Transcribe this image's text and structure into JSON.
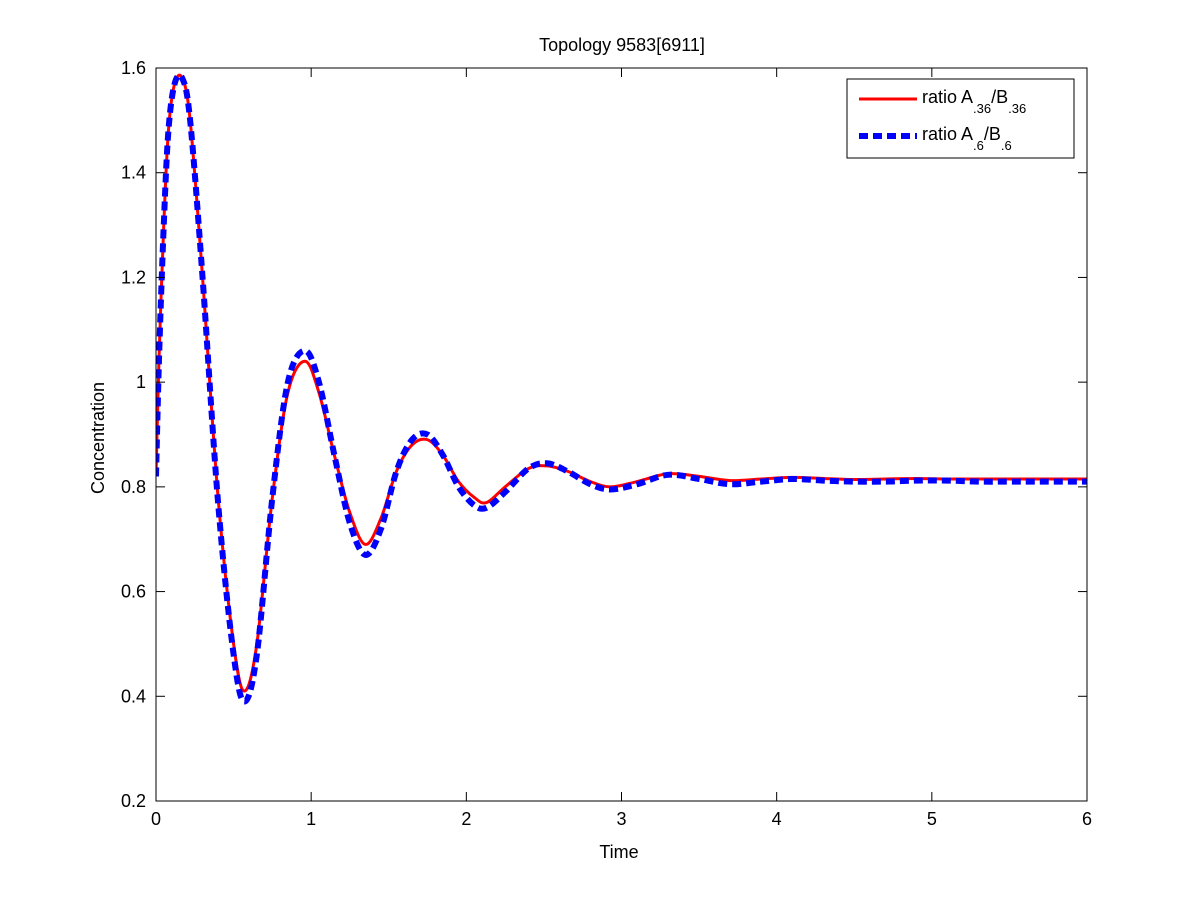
{
  "chart_data": {
    "type": "line",
    "title": "Topology 9583[6911]",
    "xlabel": "Time",
    "ylabel": "Concentration",
    "xlim": [
      0,
      6
    ],
    "ylim": [
      0.2,
      1.6
    ],
    "xticks": [
      0,
      1,
      2,
      3,
      4,
      5,
      6
    ],
    "xtick_labels": [
      "0",
      "1",
      "2",
      "3",
      "4",
      "5",
      "6"
    ],
    "yticks": [
      0.2,
      0.4,
      0.6,
      0.8,
      1.0,
      1.2,
      1.4,
      1.6
    ],
    "ytick_labels": [
      "0.2",
      "0.4",
      "0.6",
      "0.8",
      "1",
      "1.2",
      "1.4",
      "1.6"
    ],
    "grid": false,
    "legend_position": "top-right",
    "series": [
      {
        "name": "ratio A.36/B.36",
        "legend": {
          "text": "ratio A",
          "sub1": ".36",
          "mid": "/B",
          "sub2": ".36"
        },
        "color": "#ff0000",
        "style": "solid",
        "x": [
          0,
          0.02,
          0.05,
          0.08,
          0.12,
          0.17,
          0.22,
          0.3,
          0.4,
          0.5,
          0.57,
          0.65,
          0.75,
          0.85,
          0.96,
          1.05,
          1.15,
          1.25,
          1.35,
          1.45,
          1.55,
          1.65,
          1.75,
          1.85,
          1.95,
          2.05,
          2.13,
          2.25,
          2.4,
          2.52,
          2.65,
          2.8,
          2.93,
          3.1,
          3.3,
          3.5,
          3.7,
          3.9,
          4.1,
          4.3,
          4.5,
          4.7,
          4.9,
          5.1,
          5.3,
          5.5,
          5.7,
          6.0
        ],
        "y": [
          0.82,
          1.05,
          1.3,
          1.48,
          1.57,
          1.58,
          1.5,
          1.2,
          0.78,
          0.5,
          0.41,
          0.5,
          0.78,
          0.98,
          1.04,
          0.98,
          0.86,
          0.75,
          0.69,
          0.74,
          0.83,
          0.88,
          0.89,
          0.86,
          0.81,
          0.78,
          0.77,
          0.8,
          0.835,
          0.84,
          0.83,
          0.81,
          0.8,
          0.81,
          0.825,
          0.82,
          0.812,
          0.815,
          0.818,
          0.816,
          0.814,
          0.815,
          0.816,
          0.815,
          0.815,
          0.815,
          0.815,
          0.815
        ]
      },
      {
        "name": "ratio A.6/B.6",
        "legend": {
          "text": "ratio A",
          "sub1": ".6",
          "mid": "/B",
          "sub2": ".6"
        },
        "color": "#0000ff",
        "style": "dashed",
        "x": [
          0,
          0.02,
          0.05,
          0.08,
          0.12,
          0.17,
          0.22,
          0.3,
          0.4,
          0.5,
          0.57,
          0.65,
          0.75,
          0.85,
          0.96,
          1.05,
          1.15,
          1.25,
          1.35,
          1.45,
          1.55,
          1.65,
          1.75,
          1.85,
          1.95,
          2.05,
          2.13,
          2.25,
          2.4,
          2.52,
          2.65,
          2.8,
          2.93,
          3.1,
          3.3,
          3.5,
          3.7,
          3.9,
          4.1,
          4.3,
          4.5,
          4.7,
          4.9,
          5.1,
          5.3,
          5.5,
          5.7,
          6.0
        ],
        "y": [
          0.82,
          1.05,
          1.3,
          1.48,
          1.57,
          1.58,
          1.5,
          1.2,
          0.77,
          0.48,
          0.39,
          0.48,
          0.78,
          1.0,
          1.06,
          1.0,
          0.86,
          0.73,
          0.67,
          0.72,
          0.83,
          0.89,
          0.9,
          0.86,
          0.8,
          0.765,
          0.76,
          0.79,
          0.835,
          0.845,
          0.83,
          0.805,
          0.795,
          0.805,
          0.823,
          0.815,
          0.805,
          0.81,
          0.815,
          0.812,
          0.81,
          0.81,
          0.812,
          0.812,
          0.81,
          0.81,
          0.81,
          0.81
        ]
      }
    ]
  }
}
